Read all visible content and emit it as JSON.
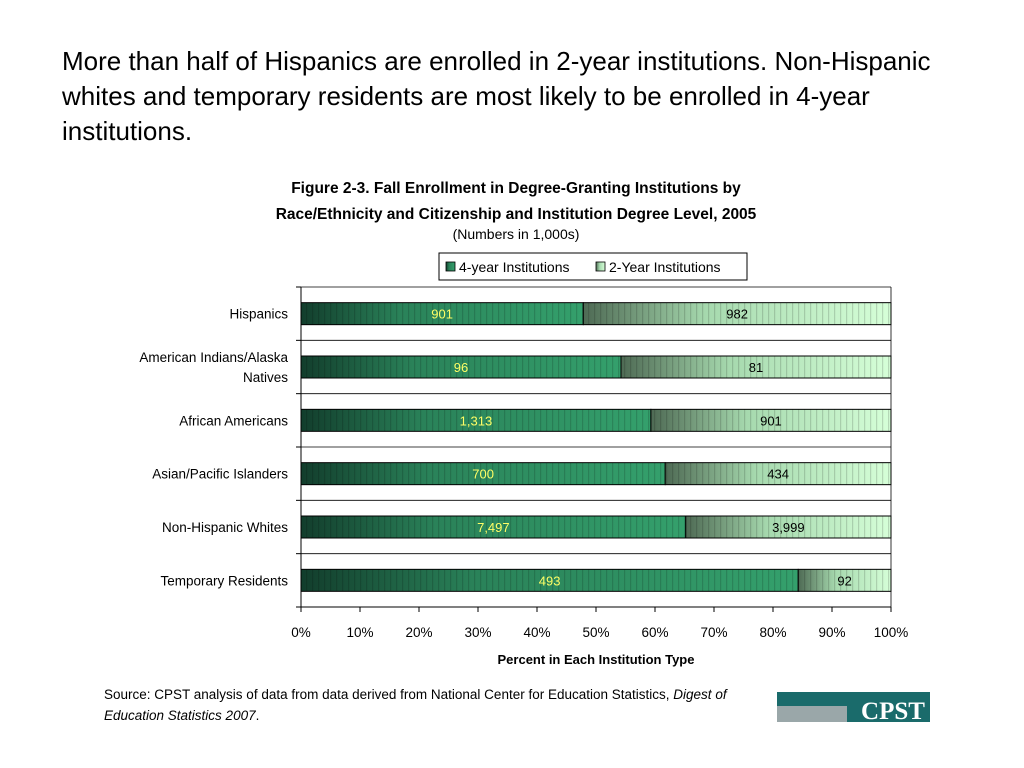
{
  "headline": "More than half of Hispanics are enrolled in 2-year institutions. Non-Hispanic whites and temporary residents are most likely to be enrolled in 4-year institutions.",
  "chart_data": {
    "type": "bar",
    "orientation": "horizontal",
    "stacked": "percent",
    "title_line1": "Figure 2-3. Fall Enrollment in Degree-Granting Institutions by",
    "title_line2": "Race/Ethnicity and Citizenship and Institution Degree Level, 2005",
    "subtitle": "(Numbers in 1,000s)",
    "xlabel": "Percent in Each Institution Type",
    "ylabel": "",
    "xlim": [
      0,
      100
    ],
    "x_ticks": [
      "0%",
      "10%",
      "20%",
      "30%",
      "40%",
      "50%",
      "60%",
      "70%",
      "80%",
      "90%",
      "100%"
    ],
    "categories": [
      "Hispanics",
      "American Indians/Alaska Natives",
      "African Americans",
      "Asian/Pacific Islanders",
      "Non-Hispanic Whites",
      "Temporary Residents"
    ],
    "category_label_lines": [
      [
        "Hispanics"
      ],
      [
        "American Indians/Alaska",
        "Natives"
      ],
      [
        "African Americans"
      ],
      [
        "Asian/Pacific Islanders"
      ],
      [
        "Non-Hispanic Whites"
      ],
      [
        "Temporary Residents"
      ]
    ],
    "series": [
      {
        "name": "4-year Institutions",
        "values": [
          901,
          96,
          1313,
          700,
          7497,
          493
        ],
        "labels": [
          "901",
          "96",
          "1,313",
          "700",
          "7,497",
          "493"
        ],
        "color": "#2f8f5e",
        "label_color": "#ffff66"
      },
      {
        "name": "2-Year Institutions",
        "values": [
          982,
          81,
          901,
          434,
          3999,
          92
        ],
        "labels": [
          "982",
          "81",
          "901",
          "434",
          "3,999",
          "92"
        ],
        "color": "#c8f7c8",
        "label_color": "#000000"
      }
    ],
    "legend_position": "top",
    "grid": true
  },
  "source_prefix": "Source: CPST analysis of data from data derived from National Center for Education Statistics,",
  "source_title": "Digest of Education Statistics 2007",
  "source_suffix": ".",
  "logo_text": "CPST",
  "colors": {
    "logo_teal": "#1a6b6b",
    "logo_gray": "#9aa7a9"
  }
}
